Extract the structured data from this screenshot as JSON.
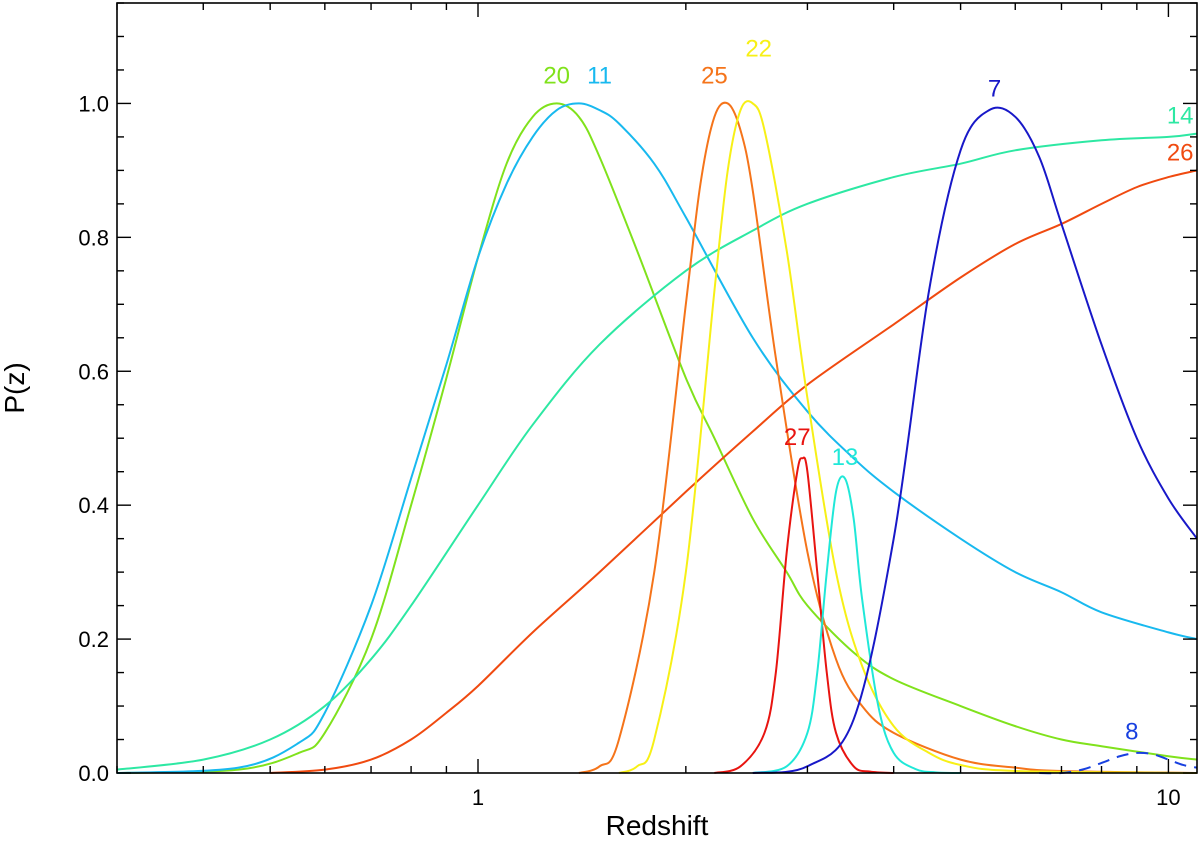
{
  "chart_data": {
    "type": "line",
    "title": "",
    "xlabel": "Redshift",
    "ylabel": "P(z)",
    "xscale": "log",
    "xlim": [
      0.3,
      11
    ],
    "ylim": [
      0.0,
      1.15
    ],
    "xticks": [
      {
        "value": 1,
        "label": "1"
      },
      {
        "value": 10,
        "label": "10"
      }
    ],
    "yticks": [
      {
        "value": 0.0,
        "label": "0.0"
      },
      {
        "value": 0.2,
        "label": "0.2"
      },
      {
        "value": 0.4,
        "label": "0.4"
      },
      {
        "value": 0.6,
        "label": "0.6"
      },
      {
        "value": 0.8,
        "label": "0.8"
      },
      {
        "value": 1.0,
        "label": "1.0"
      }
    ],
    "grid": false,
    "legend": "none",
    "series": [
      {
        "name": "20",
        "color": "#80e21c",
        "dash": false,
        "x": [
          0.3,
          0.45,
          0.55,
          0.6,
          0.7,
          0.8,
          0.9,
          1.0,
          1.1,
          1.2,
          1.3,
          1.4,
          1.5,
          1.7,
          2.0,
          2.2,
          2.5,
          2.8,
          3.0,
          3.5,
          4.0,
          5.0,
          6.0,
          7.0,
          8.0,
          10.0,
          11.0
        ],
        "y": [
          0.0,
          0.005,
          0.03,
          0.06,
          0.2,
          0.4,
          0.59,
          0.77,
          0.91,
          0.98,
          1.0,
          0.98,
          0.92,
          0.78,
          0.59,
          0.5,
          0.38,
          0.3,
          0.25,
          0.18,
          0.14,
          0.1,
          0.07,
          0.05,
          0.04,
          0.025,
          0.02
        ],
        "label": {
          "text": "20",
          "x": 1.3,
          "y": 1.03
        }
      },
      {
        "name": "11",
        "color": "#18b9ef",
        "dash": false,
        "x": [
          0.3,
          0.45,
          0.55,
          0.6,
          0.7,
          0.8,
          0.9,
          1.0,
          1.1,
          1.2,
          1.3,
          1.4,
          1.5,
          1.6,
          1.8,
          2.0,
          2.5,
          3.0,
          3.5,
          4.0,
          5.0,
          6.0,
          7.0,
          8.0,
          10.0,
          11.0
        ],
        "y": [
          0.0,
          0.008,
          0.045,
          0.09,
          0.25,
          0.44,
          0.61,
          0.77,
          0.88,
          0.95,
          0.99,
          1.0,
          0.99,
          0.97,
          0.91,
          0.83,
          0.65,
          0.54,
          0.47,
          0.42,
          0.35,
          0.3,
          0.27,
          0.24,
          0.21,
          0.2
        ],
        "label": {
          "text": "11",
          "x": 1.5,
          "y": 1.03
        }
      },
      {
        "name": "14",
        "color": "#2de8a3",
        "dash": false,
        "x": [
          0.3,
          0.4,
          0.5,
          0.6,
          0.7,
          0.8,
          1.0,
          1.2,
          1.5,
          2.0,
          2.5,
          3.0,
          4.0,
          5.0,
          6.0,
          8.0,
          10.0,
          11.0
        ],
        "y": [
          0.005,
          0.02,
          0.05,
          0.1,
          0.17,
          0.25,
          0.4,
          0.52,
          0.64,
          0.75,
          0.81,
          0.85,
          0.89,
          0.91,
          0.93,
          0.945,
          0.95,
          0.955
        ],
        "label": {
          "text": "14",
          "x": 10.4,
          "y": 0.97
        }
      },
      {
        "name": "26",
        "color": "#f04a10",
        "dash": false,
        "x": [
          0.5,
          0.6,
          0.7,
          0.8,
          0.9,
          1.0,
          1.2,
          1.5,
          2.0,
          2.5,
          3.0,
          4.0,
          5.0,
          6.0,
          7.0,
          8.0,
          9.0,
          10.0,
          11.0
        ],
        "y": [
          0.0,
          0.005,
          0.02,
          0.05,
          0.09,
          0.13,
          0.21,
          0.3,
          0.42,
          0.51,
          0.58,
          0.67,
          0.74,
          0.79,
          0.82,
          0.85,
          0.875,
          0.89,
          0.9
        ],
        "label": {
          "text": "26",
          "x": 10.4,
          "y": 0.915
        }
      },
      {
        "name": "25",
        "color": "#f5741a",
        "dash": false,
        "x": [
          1.4,
          1.5,
          1.6,
          1.8,
          2.0,
          2.1,
          2.2,
          2.3,
          2.4,
          2.5,
          2.7,
          3.0,
          3.3,
          3.6,
          4.0,
          5.0,
          6.0,
          7.0,
          11.0
        ],
        "y": [
          0.0,
          0.01,
          0.05,
          0.3,
          0.7,
          0.88,
          0.98,
          1.0,
          0.96,
          0.87,
          0.62,
          0.33,
          0.17,
          0.1,
          0.06,
          0.02,
          0.008,
          0.003,
          0.0
        ],
        "label": {
          "text": "25",
          "x": 2.2,
          "y": 1.03
        }
      },
      {
        "name": "22",
        "color": "#f7f016",
        "dash": false,
        "x": [
          1.6,
          1.7,
          1.8,
          2.0,
          2.2,
          2.3,
          2.4,
          2.5,
          2.6,
          2.8,
          3.0,
          3.3,
          3.6,
          4.0,
          4.5,
          5.0,
          6.0,
          11.0
        ],
        "y": [
          0.0,
          0.01,
          0.05,
          0.3,
          0.72,
          0.9,
          0.99,
          1.0,
          0.96,
          0.78,
          0.56,
          0.3,
          0.16,
          0.07,
          0.03,
          0.012,
          0.003,
          0.0
        ],
        "label": {
          "text": "22",
          "x": 2.55,
          "y": 1.07
        }
      },
      {
        "name": "27",
        "color": "#e81410",
        "dash": false,
        "x": [
          2.2,
          2.4,
          2.6,
          2.7,
          2.8,
          2.9,
          2.95,
          3.0,
          3.1,
          3.2,
          3.3,
          3.5,
          3.7,
          4.0
        ],
        "y": [
          0.0,
          0.01,
          0.06,
          0.15,
          0.33,
          0.45,
          0.47,
          0.45,
          0.3,
          0.15,
          0.06,
          0.01,
          0.002,
          0.0
        ],
        "label": {
          "text": "27",
          "x": 2.9,
          "y": 0.49
        }
      },
      {
        "name": "13",
        "color": "#20e8d8",
        "dash": false,
        "x": [
          2.5,
          2.8,
          3.0,
          3.1,
          3.2,
          3.3,
          3.4,
          3.5,
          3.6,
          3.8,
          4.0,
          4.3,
          4.6,
          5.0
        ],
        "y": [
          0.0,
          0.01,
          0.06,
          0.15,
          0.3,
          0.42,
          0.44,
          0.38,
          0.26,
          0.1,
          0.03,
          0.006,
          0.001,
          0.0
        ],
        "label": {
          "text": "13",
          "x": 3.4,
          "y": 0.46
        }
      },
      {
        "name": "7",
        "color": "#1818c8",
        "dash": false,
        "x": [
          2.5,
          3.0,
          3.5,
          4.0,
          4.5,
          5.0,
          5.5,
          6.0,
          6.5,
          7.0,
          8.0,
          9.0,
          10.0,
          11.0
        ],
        "y": [
          0.0,
          0.01,
          0.08,
          0.35,
          0.72,
          0.93,
          0.99,
          0.98,
          0.92,
          0.82,
          0.64,
          0.5,
          0.41,
          0.35
        ],
        "label": {
          "text": "7",
          "x": 5.6,
          "y": 1.01
        }
      },
      {
        "name": "8",
        "color": "#1840e0",
        "dash": true,
        "x": [
          6.5,
          7.0,
          7.5,
          8.0,
          8.5,
          9.0,
          9.5,
          10.0,
          10.5,
          11.0
        ],
        "y": [
          0.0,
          0.0,
          0.005,
          0.015,
          0.025,
          0.03,
          0.028,
          0.02,
          0.012,
          0.008
        ],
        "label": {
          "text": "8",
          "x": 8.85,
          "y": 0.05
        }
      }
    ]
  }
}
